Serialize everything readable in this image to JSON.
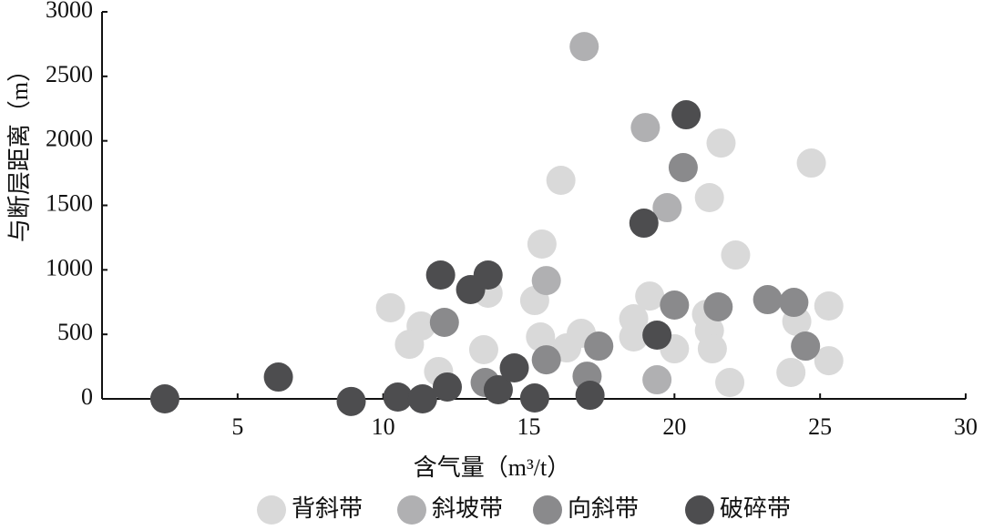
{
  "chart_data": {
    "type": "scatter",
    "x_label": "含气量（m³/t）",
    "y_label": "与断层距离（m）",
    "xlim": [
      0,
      30
    ],
    "xticks": [
      5,
      10,
      15,
      20,
      25,
      30
    ],
    "ylim": [
      0,
      3000
    ],
    "yticks": [
      0,
      500,
      1000,
      1500,
      2000,
      2500,
      3000
    ],
    "legend": "bottom",
    "series": [
      {
        "name": "背斜带",
        "color": "#d9d9d9",
        "x": [
          10.25,
          11.3,
          10.9,
          11.9,
          13.6,
          13.45,
          15.2,
          15.45,
          15.4,
          16.1,
          16.3,
          16.8,
          18.6,
          18.6,
          19.15,
          20.0,
          21.2,
          21.6,
          22.1,
          21.1,
          21.2,
          21.3,
          21.9,
          24.2,
          24.0,
          24.7,
          25.3,
          25.3
        ],
        "values": [
          706,
          565,
          423,
          212,
          819,
          381,
          762,
          1200,
          480,
          1694,
          395,
          508,
          621,
          480,
          797,
          388,
          1560,
          1983,
          1115,
          656,
          529,
          388,
          127,
          600,
          205,
          1828,
          720,
          296
        ]
      },
      {
        "name": "斜坡带",
        "color": "#b0b0b2",
        "x": [
          16.9,
          19.0,
          15.6,
          19.75,
          19.4
        ],
        "values": [
          2731,
          2103,
          917,
          1482,
          148
        ]
      },
      {
        "name": "向斜带",
        "color": "#8a8a8c",
        "x": [
          20.3,
          20.0,
          21.5,
          23.2,
          24.1,
          24.5,
          15.6,
          17.4,
          17.0,
          12.1,
          13.5
        ],
        "values": [
          1793,
          727,
          713,
          769,
          748,
          409,
          303,
          409,
          176,
          593,
          127
        ]
      },
      {
        "name": "破碎带",
        "color": "#4d4d4f",
        "x": [
          2.5,
          6.4,
          8.9,
          10.5,
          11.35,
          12.2,
          11.97,
          13.0,
          13.6,
          13.95,
          14.5,
          15.2,
          17.1,
          18.95,
          19.4,
          20.4
        ],
        "values": [
          0,
          169,
          -20,
          14,
          0,
          92,
          960,
          847,
          960,
          71,
          240,
          7,
          28,
          1362,
          494,
          2202
        ]
      }
    ]
  }
}
